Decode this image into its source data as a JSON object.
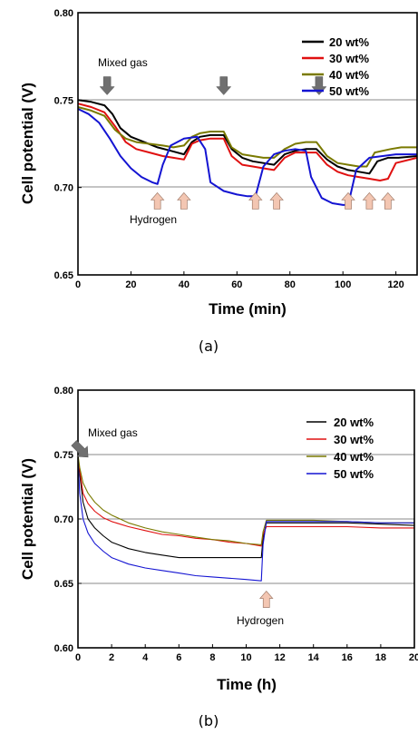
{
  "chart_data": [
    {
      "type": "line",
      "panel_label": "(a)",
      "xlabel": "Time (min)",
      "ylabel": "Cell potential (V)",
      "xlim": [
        0,
        128
      ],
      "ylim": [
        0.65,
        0.8
      ],
      "xticks": [
        "0",
        "20",
        "40",
        "60",
        "80",
        "100",
        "120"
      ],
      "xtick_values": [
        0,
        20,
        40,
        60,
        80,
        100,
        120
      ],
      "yticks": [
        "0.65",
        "0.70",
        "0.75",
        "0.80"
      ],
      "ytick_values": [
        0.65,
        0.7,
        0.75,
        0.8
      ],
      "gridlines_y": [
        0.7,
        0.75
      ],
      "legend_placement": "top-right",
      "series": [
        {
          "name": "20 wt%",
          "color": "#000000",
          "x": [
            0,
            5,
            10,
            13,
            16,
            20,
            25,
            30,
            35,
            40,
            43,
            46,
            50,
            55,
            58,
            62,
            66,
            70,
            74,
            78,
            82,
            86,
            90,
            94,
            98,
            102,
            106,
            110,
            113,
            117,
            121,
            128
          ],
          "y": [
            0.75,
            0.749,
            0.747,
            0.742,
            0.734,
            0.729,
            0.726,
            0.723,
            0.721,
            0.719,
            0.726,
            0.729,
            0.73,
            0.73,
            0.722,
            0.717,
            0.715,
            0.714,
            0.713,
            0.719,
            0.721,
            0.722,
            0.722,
            0.716,
            0.712,
            0.71,
            0.709,
            0.708,
            0.715,
            0.717,
            0.717,
            0.718
          ]
        },
        {
          "name": "30 wt%",
          "color": "#e01010",
          "x": [
            0,
            5,
            10,
            14,
            18,
            22,
            27,
            32,
            36,
            40,
            43,
            46,
            50,
            55,
            58,
            62,
            66,
            70,
            74,
            78,
            82,
            86,
            90,
            94,
            98,
            102,
            106,
            110,
            114,
            117,
            120,
            128
          ],
          "y": [
            0.748,
            0.746,
            0.743,
            0.735,
            0.726,
            0.722,
            0.72,
            0.718,
            0.717,
            0.716,
            0.725,
            0.727,
            0.728,
            0.728,
            0.718,
            0.713,
            0.712,
            0.711,
            0.71,
            0.717,
            0.72,
            0.72,
            0.72,
            0.713,
            0.709,
            0.707,
            0.706,
            0.705,
            0.704,
            0.705,
            0.714,
            0.717
          ]
        },
        {
          "name": "40 wt%",
          "color": "#7a7a00",
          "x": [
            0,
            5,
            10,
            14,
            18,
            22,
            27,
            32,
            36,
            40,
            43,
            46,
            50,
            55,
            58,
            62,
            66,
            70,
            74,
            78,
            82,
            86,
            90,
            94,
            98,
            102,
            106,
            109,
            112,
            118,
            122,
            128
          ],
          "y": [
            0.746,
            0.744,
            0.741,
            0.733,
            0.728,
            0.726,
            0.725,
            0.724,
            0.723,
            0.724,
            0.729,
            0.731,
            0.732,
            0.732,
            0.723,
            0.719,
            0.718,
            0.717,
            0.717,
            0.722,
            0.725,
            0.726,
            0.726,
            0.718,
            0.714,
            0.713,
            0.712,
            0.712,
            0.72,
            0.722,
            0.723,
            0.723
          ]
        },
        {
          "name": "50 wt%",
          "color": "#1414d2",
          "x": [
            0,
            4,
            8,
            12,
            16,
            20,
            24,
            28,
            30,
            32,
            35,
            40,
            45,
            48,
            50,
            55,
            60,
            64,
            67,
            70,
            74,
            78,
            82,
            86,
            88,
            92,
            96,
            100,
            102,
            105,
            110,
            120,
            128
          ],
          "y": [
            0.745,
            0.742,
            0.737,
            0.728,
            0.718,
            0.711,
            0.706,
            0.703,
            0.702,
            0.713,
            0.724,
            0.728,
            0.729,
            0.722,
            0.703,
            0.698,
            0.696,
            0.695,
            0.695,
            0.712,
            0.719,
            0.721,
            0.722,
            0.721,
            0.706,
            0.694,
            0.691,
            0.69,
            0.69,
            0.71,
            0.717,
            0.719,
            0.719
          ]
        }
      ],
      "annotations": [
        {
          "text": "Mixed gas",
          "x": 13,
          "y": 0.765
        },
        {
          "text": "Hydrogen",
          "x": 33,
          "y": 0.687
        }
      ],
      "arrows_down_gray_x": [
        11,
        55,
        91
      ],
      "arrows_down_gray_y": 0.753,
      "arrows_up_pink_x": [
        30,
        40,
        67,
        75,
        102,
        110,
        117
      ],
      "arrows_up_pink_y": 0.697
    },
    {
      "type": "line",
      "panel_label": "(b)",
      "xlabel": "Time (h)",
      "ylabel": "Cell potential (V)",
      "xlim": [
        0,
        20
      ],
      "ylim": [
        0.6,
        0.8
      ],
      "xticks": [
        "0",
        "2",
        "4",
        "6",
        "8",
        "10",
        "12",
        "14",
        "16",
        "18",
        "20"
      ],
      "xtick_values": [
        0,
        2,
        4,
        6,
        8,
        10,
        12,
        14,
        16,
        18,
        20
      ],
      "yticks": [
        "0.60",
        "0.65",
        "0.70",
        "0.75",
        "0.80"
      ],
      "ytick_values": [
        0.6,
        0.65,
        0.7,
        0.75,
        0.8
      ],
      "gridlines_y": [
        0.65,
        0.7,
        0.75
      ],
      "legend_placement": "top-right",
      "series": [
        {
          "name": "20 wt%",
          "color": "#000000",
          "x": [
            0,
            0.1,
            0.3,
            0.6,
            1,
            1.5,
            2,
            3,
            4,
            5,
            6,
            7,
            8,
            9,
            10,
            10.9,
            11.0,
            11.2,
            12,
            14,
            16,
            18,
            20
          ],
          "y": [
            0.745,
            0.735,
            0.713,
            0.7,
            0.693,
            0.687,
            0.682,
            0.677,
            0.674,
            0.672,
            0.67,
            0.67,
            0.67,
            0.67,
            0.67,
            0.67,
            0.685,
            0.697,
            0.697,
            0.697,
            0.697,
            0.696,
            0.695
          ]
        },
        {
          "name": "30 wt%",
          "color": "#e01010",
          "x": [
            0,
            0.1,
            0.3,
            0.6,
            1,
            1.5,
            2,
            3,
            4,
            5,
            6,
            7,
            8,
            9,
            10,
            10.9,
            11.0,
            11.2,
            12,
            14,
            16,
            18,
            20
          ],
          "y": [
            0.748,
            0.738,
            0.72,
            0.712,
            0.706,
            0.701,
            0.698,
            0.694,
            0.691,
            0.688,
            0.687,
            0.685,
            0.684,
            0.682,
            0.681,
            0.679,
            0.688,
            0.694,
            0.694,
            0.694,
            0.694,
            0.693,
            0.693
          ]
        },
        {
          "name": "40 wt%",
          "color": "#7a7a00",
          "x": [
            0,
            0.1,
            0.3,
            0.6,
            1,
            1.5,
            2,
            3,
            4,
            5,
            6,
            7,
            8,
            9,
            10,
            10.9,
            11.0,
            11.2,
            12,
            14,
            16,
            18,
            20
          ],
          "y": [
            0.75,
            0.74,
            0.728,
            0.72,
            0.713,
            0.707,
            0.703,
            0.697,
            0.693,
            0.69,
            0.688,
            0.686,
            0.684,
            0.683,
            0.681,
            0.68,
            0.69,
            0.699,
            0.699,
            0.699,
            0.698,
            0.697,
            0.697
          ]
        },
        {
          "name": "50 wt%",
          "color": "#1414d2",
          "x": [
            0,
            0.1,
            0.3,
            0.6,
            1,
            1.5,
            2,
            3,
            4,
            5,
            6,
            7,
            8,
            9,
            10,
            10.9,
            11.0,
            11.2,
            12,
            14,
            16,
            18,
            20
          ],
          "y": [
            0.745,
            0.72,
            0.7,
            0.689,
            0.681,
            0.675,
            0.67,
            0.665,
            0.662,
            0.66,
            0.658,
            0.656,
            0.655,
            0.654,
            0.653,
            0.652,
            0.68,
            0.698,
            0.698,
            0.698,
            0.698,
            0.697,
            0.697
          ]
        }
      ],
      "annotations": [
        {
          "text": "Mixed gas",
          "x": 2.9,
          "y": 0.762
        },
        {
          "text": "Hydrogen",
          "x": 11.4,
          "y": 0.619
        }
      ],
      "arrows_gray_diagonal": [
        {
          "x": 0.6,
          "y": 0.748
        }
      ],
      "arrows_up_pink_x": [
        11.2
      ],
      "arrows_up_pink_y": 0.644
    }
  ]
}
